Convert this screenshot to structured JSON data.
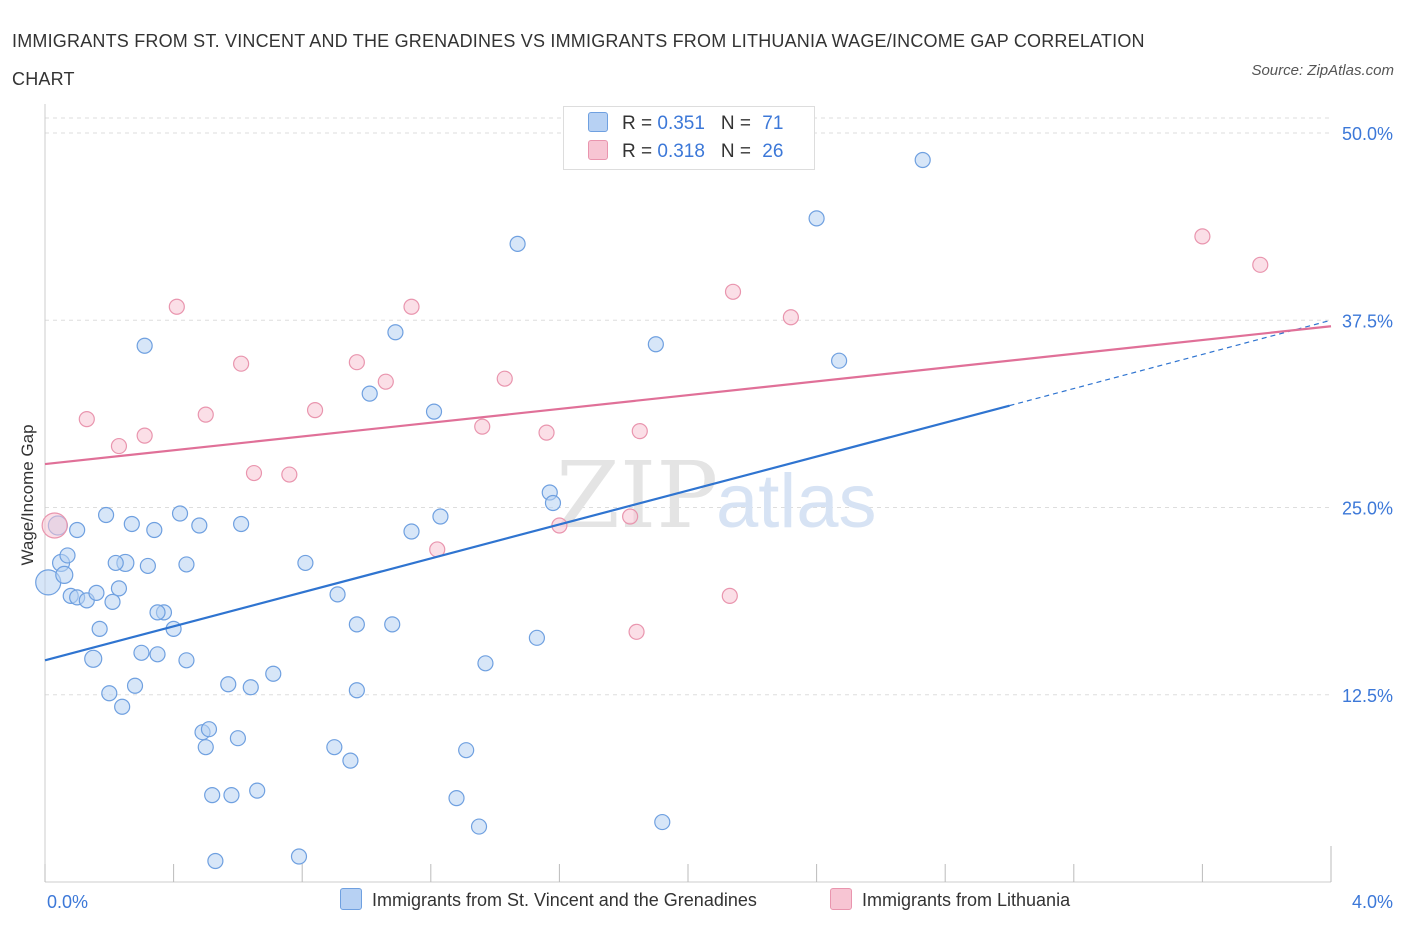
{
  "title": "IMMIGRANTS FROM ST. VINCENT AND THE GRENADINES VS IMMIGRANTS FROM LITHUANIA WAGE/INCOME GAP CORRELATION CHART",
  "source": "Source: ZipAtlas.com",
  "watermark": {
    "zip": "ZIP",
    "atlas": "atlas"
  },
  "colors": {
    "blue_fill": "#b7d1f3",
    "blue_stroke": "#6fa0e0",
    "blue_line": "#2f74d0",
    "pink_fill": "#f7c5d3",
    "pink_stroke": "#e995ae",
    "pink_line": "#e07098",
    "grid": "#dddddd",
    "tick_label": "#3c78d8"
  },
  "legend": {
    "rows": [
      {
        "r_label": "R = ",
        "r_value": "0.351",
        "n_label": "N = ",
        "n_value": "71"
      },
      {
        "r_label": "R = ",
        "r_value": "0.318",
        "n_label": "N = ",
        "n_value": "26"
      }
    ]
  },
  "chart_data": {
    "type": "scatter",
    "title": "IMMIGRANTS FROM ST. VINCENT AND THE GRENADINES VS IMMIGRANTS FROM LITHUANIA WAGE/INCOME GAP CORRELATION CHART",
    "xlabel": "",
    "ylabel": "Wage/Income Gap",
    "xlim": [
      0,
      4.0
    ],
    "ylim": [
      0,
      50.0
    ],
    "x_tick_labels": [
      "0.0%",
      "4.0%"
    ],
    "y_ticks": [
      12.5,
      25.0,
      37.5,
      50.0
    ],
    "y_tick_labels": [
      "12.5%",
      "25.0%",
      "37.5%",
      "50.0%"
    ],
    "grid": true,
    "legend_position": "top-center",
    "series": [
      {
        "name": "Immigrants from St. Vincent and the Grenadines",
        "color": "#b7d1f3",
        "R": 0.351,
        "N": 71,
        "trend": {
          "x0": 0.0,
          "y0": 14.8,
          "x1": 3.0,
          "y1": 31.8,
          "dash_to_x": 4.0,
          "dash_to_y": 37.5
        },
        "points": [
          [
            0.01,
            20.0,
            22
          ],
          [
            0.04,
            23.8,
            16
          ],
          [
            0.05,
            21.3,
            14
          ],
          [
            0.06,
            20.5,
            14
          ],
          [
            0.07,
            21.8,
            12
          ],
          [
            0.08,
            19.1,
            12
          ],
          [
            0.1,
            23.5,
            12
          ],
          [
            0.1,
            19.0,
            12
          ],
          [
            0.13,
            18.8,
            12
          ],
          [
            0.15,
            14.9,
            14
          ],
          [
            0.16,
            19.3,
            12
          ],
          [
            0.17,
            16.9,
            12
          ],
          [
            0.19,
            24.5,
            12
          ],
          [
            0.2,
            12.6,
            12
          ],
          [
            0.21,
            18.7,
            12
          ],
          [
            0.23,
            19.6,
            12
          ],
          [
            0.24,
            11.7,
            12
          ],
          [
            0.25,
            21.3,
            14
          ],
          [
            0.27,
            23.9,
            12
          ],
          [
            0.28,
            13.1,
            12
          ],
          [
            0.3,
            15.3,
            12
          ],
          [
            0.31,
            35.8,
            12
          ],
          [
            0.32,
            21.1,
            12
          ],
          [
            0.34,
            23.5,
            12
          ],
          [
            0.35,
            15.2,
            12
          ],
          [
            0.37,
            18.0,
            12
          ],
          [
            0.4,
            16.9,
            12
          ],
          [
            0.42,
            24.6,
            12
          ],
          [
            0.44,
            21.2,
            12
          ],
          [
            0.44,
            14.8,
            12
          ],
          [
            0.48,
            23.8,
            12
          ],
          [
            0.49,
            10.0,
            12
          ],
          [
            0.5,
            9.0,
            12
          ],
          [
            0.51,
            10.2,
            12
          ],
          [
            0.52,
            5.8,
            12
          ],
          [
            0.53,
            1.4,
            12
          ],
          [
            0.57,
            13.2,
            12
          ],
          [
            0.58,
            5.8,
            12
          ],
          [
            0.6,
            9.6,
            12
          ],
          [
            0.61,
            23.9,
            12
          ],
          [
            0.64,
            13.0,
            12
          ],
          [
            0.66,
            6.1,
            12
          ],
          [
            0.71,
            13.9,
            12
          ],
          [
            0.79,
            1.7,
            12
          ],
          [
            0.81,
            21.3,
            12
          ],
          [
            0.9,
            9.0,
            12
          ],
          [
            0.91,
            19.2,
            12
          ],
          [
            0.95,
            8.1,
            12
          ],
          [
            0.97,
            17.2,
            12
          ],
          [
            0.97,
            12.8,
            12
          ],
          [
            1.01,
            32.6,
            12
          ],
          [
            1.08,
            17.2,
            12
          ],
          [
            1.09,
            36.7,
            12
          ],
          [
            1.14,
            23.4,
            12
          ],
          [
            1.21,
            31.4,
            12
          ],
          [
            1.23,
            24.4,
            12
          ],
          [
            1.28,
            5.6,
            12
          ],
          [
            1.31,
            8.8,
            12
          ],
          [
            1.35,
            3.7,
            12
          ],
          [
            1.37,
            14.6,
            12
          ],
          [
            1.47,
            42.6,
            12
          ],
          [
            1.53,
            16.3,
            12
          ],
          [
            1.57,
            26.0,
            12
          ],
          [
            1.58,
            25.3,
            12
          ],
          [
            1.9,
            35.9,
            12
          ],
          [
            1.92,
            4.0,
            12
          ],
          [
            2.4,
            44.3,
            12
          ],
          [
            2.47,
            34.8,
            12
          ],
          [
            2.73,
            48.2,
            12
          ],
          [
            0.22,
            21.3,
            12
          ],
          [
            0.35,
            18.0,
            12
          ]
        ]
      },
      {
        "name": "Immigrants from Lithuania",
        "color": "#f7c5d3",
        "R": 0.318,
        "N": 26,
        "trend": {
          "x0": 0.0,
          "y0": 27.9,
          "x1": 4.0,
          "y1": 37.1
        },
        "points": [
          [
            0.03,
            23.8,
            22
          ],
          [
            0.13,
            30.9,
            12
          ],
          [
            0.23,
            29.1,
            12
          ],
          [
            0.31,
            29.8,
            12
          ],
          [
            0.41,
            38.4,
            12
          ],
          [
            0.5,
            31.2,
            12
          ],
          [
            0.61,
            34.6,
            12
          ],
          [
            0.65,
            27.3,
            12
          ],
          [
            0.76,
            27.2,
            12
          ],
          [
            0.84,
            31.5,
            12
          ],
          [
            0.97,
            34.7,
            12
          ],
          [
            1.06,
            33.4,
            12
          ],
          [
            1.14,
            38.4,
            12
          ],
          [
            1.22,
            22.2,
            12
          ],
          [
            1.36,
            30.4,
            12
          ],
          [
            1.43,
            33.6,
            12
          ],
          [
            1.56,
            30.0,
            12
          ],
          [
            1.6,
            23.8,
            12
          ],
          [
            1.82,
            24.4,
            12
          ],
          [
            1.84,
            16.7,
            12
          ],
          [
            1.85,
            30.1,
            12
          ],
          [
            2.13,
            19.1,
            12
          ],
          [
            2.14,
            39.4,
            12
          ],
          [
            2.32,
            37.7,
            12
          ],
          [
            3.6,
            43.1,
            12
          ],
          [
            3.78,
            41.2,
            12
          ]
        ]
      }
    ]
  }
}
